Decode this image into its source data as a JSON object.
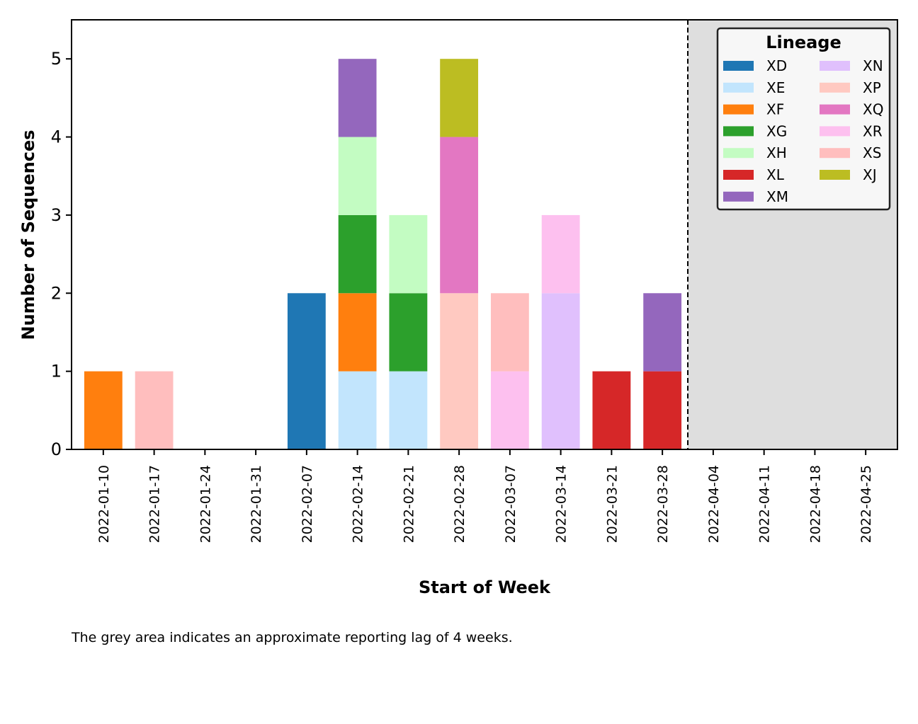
{
  "chart_data": {
    "type": "bar",
    "stacked": true,
    "xlabel": "Start of Week",
    "ylabel": "Number of Sequences",
    "ylim": [
      0,
      5.5
    ],
    "yticks": [
      0,
      1,
      2,
      3,
      4,
      5
    ],
    "categories": [
      "2022-01-10",
      "2022-01-17",
      "2022-01-24",
      "2022-01-31",
      "2022-02-07",
      "2022-02-14",
      "2022-02-21",
      "2022-02-28",
      "2022-03-07",
      "2022-03-14",
      "2022-03-21",
      "2022-03-28",
      "2022-04-04",
      "2022-04-11",
      "2022-04-18",
      "2022-04-25"
    ],
    "series": [
      {
        "name": "XD",
        "color": "#1f77b4",
        "values": [
          0,
          0,
          0,
          0,
          2,
          0,
          0,
          0,
          0,
          0,
          0,
          0,
          0,
          0,
          0,
          0
        ]
      },
      {
        "name": "XE",
        "color": "#c2e5fd",
        "values": [
          0,
          0,
          0,
          0,
          0,
          1,
          1,
          0,
          0,
          0,
          0,
          0,
          0,
          0,
          0,
          0
        ]
      },
      {
        "name": "XF",
        "color": "#ff7f0e",
        "values": [
          1,
          0,
          0,
          0,
          0,
          1,
          0,
          0,
          0,
          0,
          0,
          0,
          0,
          0,
          0,
          0
        ]
      },
      {
        "name": "XG",
        "color": "#2ca02c",
        "values": [
          0,
          0,
          0,
          0,
          0,
          1,
          1,
          0,
          0,
          0,
          0,
          0,
          0,
          0,
          0,
          0
        ]
      },
      {
        "name": "XH",
        "color": "#c3fcc2",
        "values": [
          0,
          0,
          0,
          0,
          0,
          1,
          1,
          0,
          0,
          0,
          0,
          0,
          0,
          0,
          0,
          0
        ]
      },
      {
        "name": "XL",
        "color": "#d62728",
        "values": [
          0,
          0,
          0,
          0,
          0,
          0,
          0,
          0,
          0,
          0,
          1,
          1,
          0,
          0,
          0,
          0
        ]
      },
      {
        "name": "XM",
        "color": "#9467bd",
        "values": [
          0,
          0,
          0,
          0,
          0,
          1,
          0,
          0,
          0,
          0,
          0,
          1,
          0,
          0,
          0,
          0
        ]
      },
      {
        "name": "XN",
        "color": "#e0c0fd",
        "values": [
          0,
          0,
          0,
          0,
          0,
          0,
          0,
          0,
          0,
          2,
          0,
          0,
          0,
          0,
          0,
          0
        ]
      },
      {
        "name": "XP",
        "color": "#ffc9c1",
        "values": [
          0,
          0,
          0,
          0,
          0,
          0,
          0,
          2,
          0,
          0,
          0,
          0,
          0,
          0,
          0,
          0
        ]
      },
      {
        "name": "XQ",
        "color": "#e377c2",
        "values": [
          0,
          0,
          0,
          0,
          0,
          0,
          0,
          2,
          0,
          0,
          0,
          0,
          0,
          0,
          0,
          0
        ]
      },
      {
        "name": "XR",
        "color": "#fdc0ef",
        "values": [
          0,
          0,
          0,
          0,
          0,
          0,
          0,
          0,
          1,
          1,
          0,
          0,
          0,
          0,
          0,
          0
        ]
      },
      {
        "name": "XS",
        "color": "#ffbebe",
        "values": [
          0,
          1,
          0,
          0,
          0,
          0,
          0,
          0,
          1,
          0,
          0,
          0,
          0,
          0,
          0,
          0
        ]
      },
      {
        "name": "XJ",
        "color": "#bcbd22",
        "values": [
          0,
          0,
          0,
          0,
          0,
          0,
          0,
          1,
          0,
          0,
          0,
          0,
          0,
          0,
          0,
          0
        ]
      }
    ],
    "legend": {
      "title": "Lineage",
      "placement": "top-right",
      "columns": 2
    },
    "reporting_lag": {
      "start_category": "2022-04-04",
      "weeks": 4,
      "shade_color": "#dedede"
    }
  },
  "caption": "The grey area indicates an approximate reporting lag of 4 weeks."
}
